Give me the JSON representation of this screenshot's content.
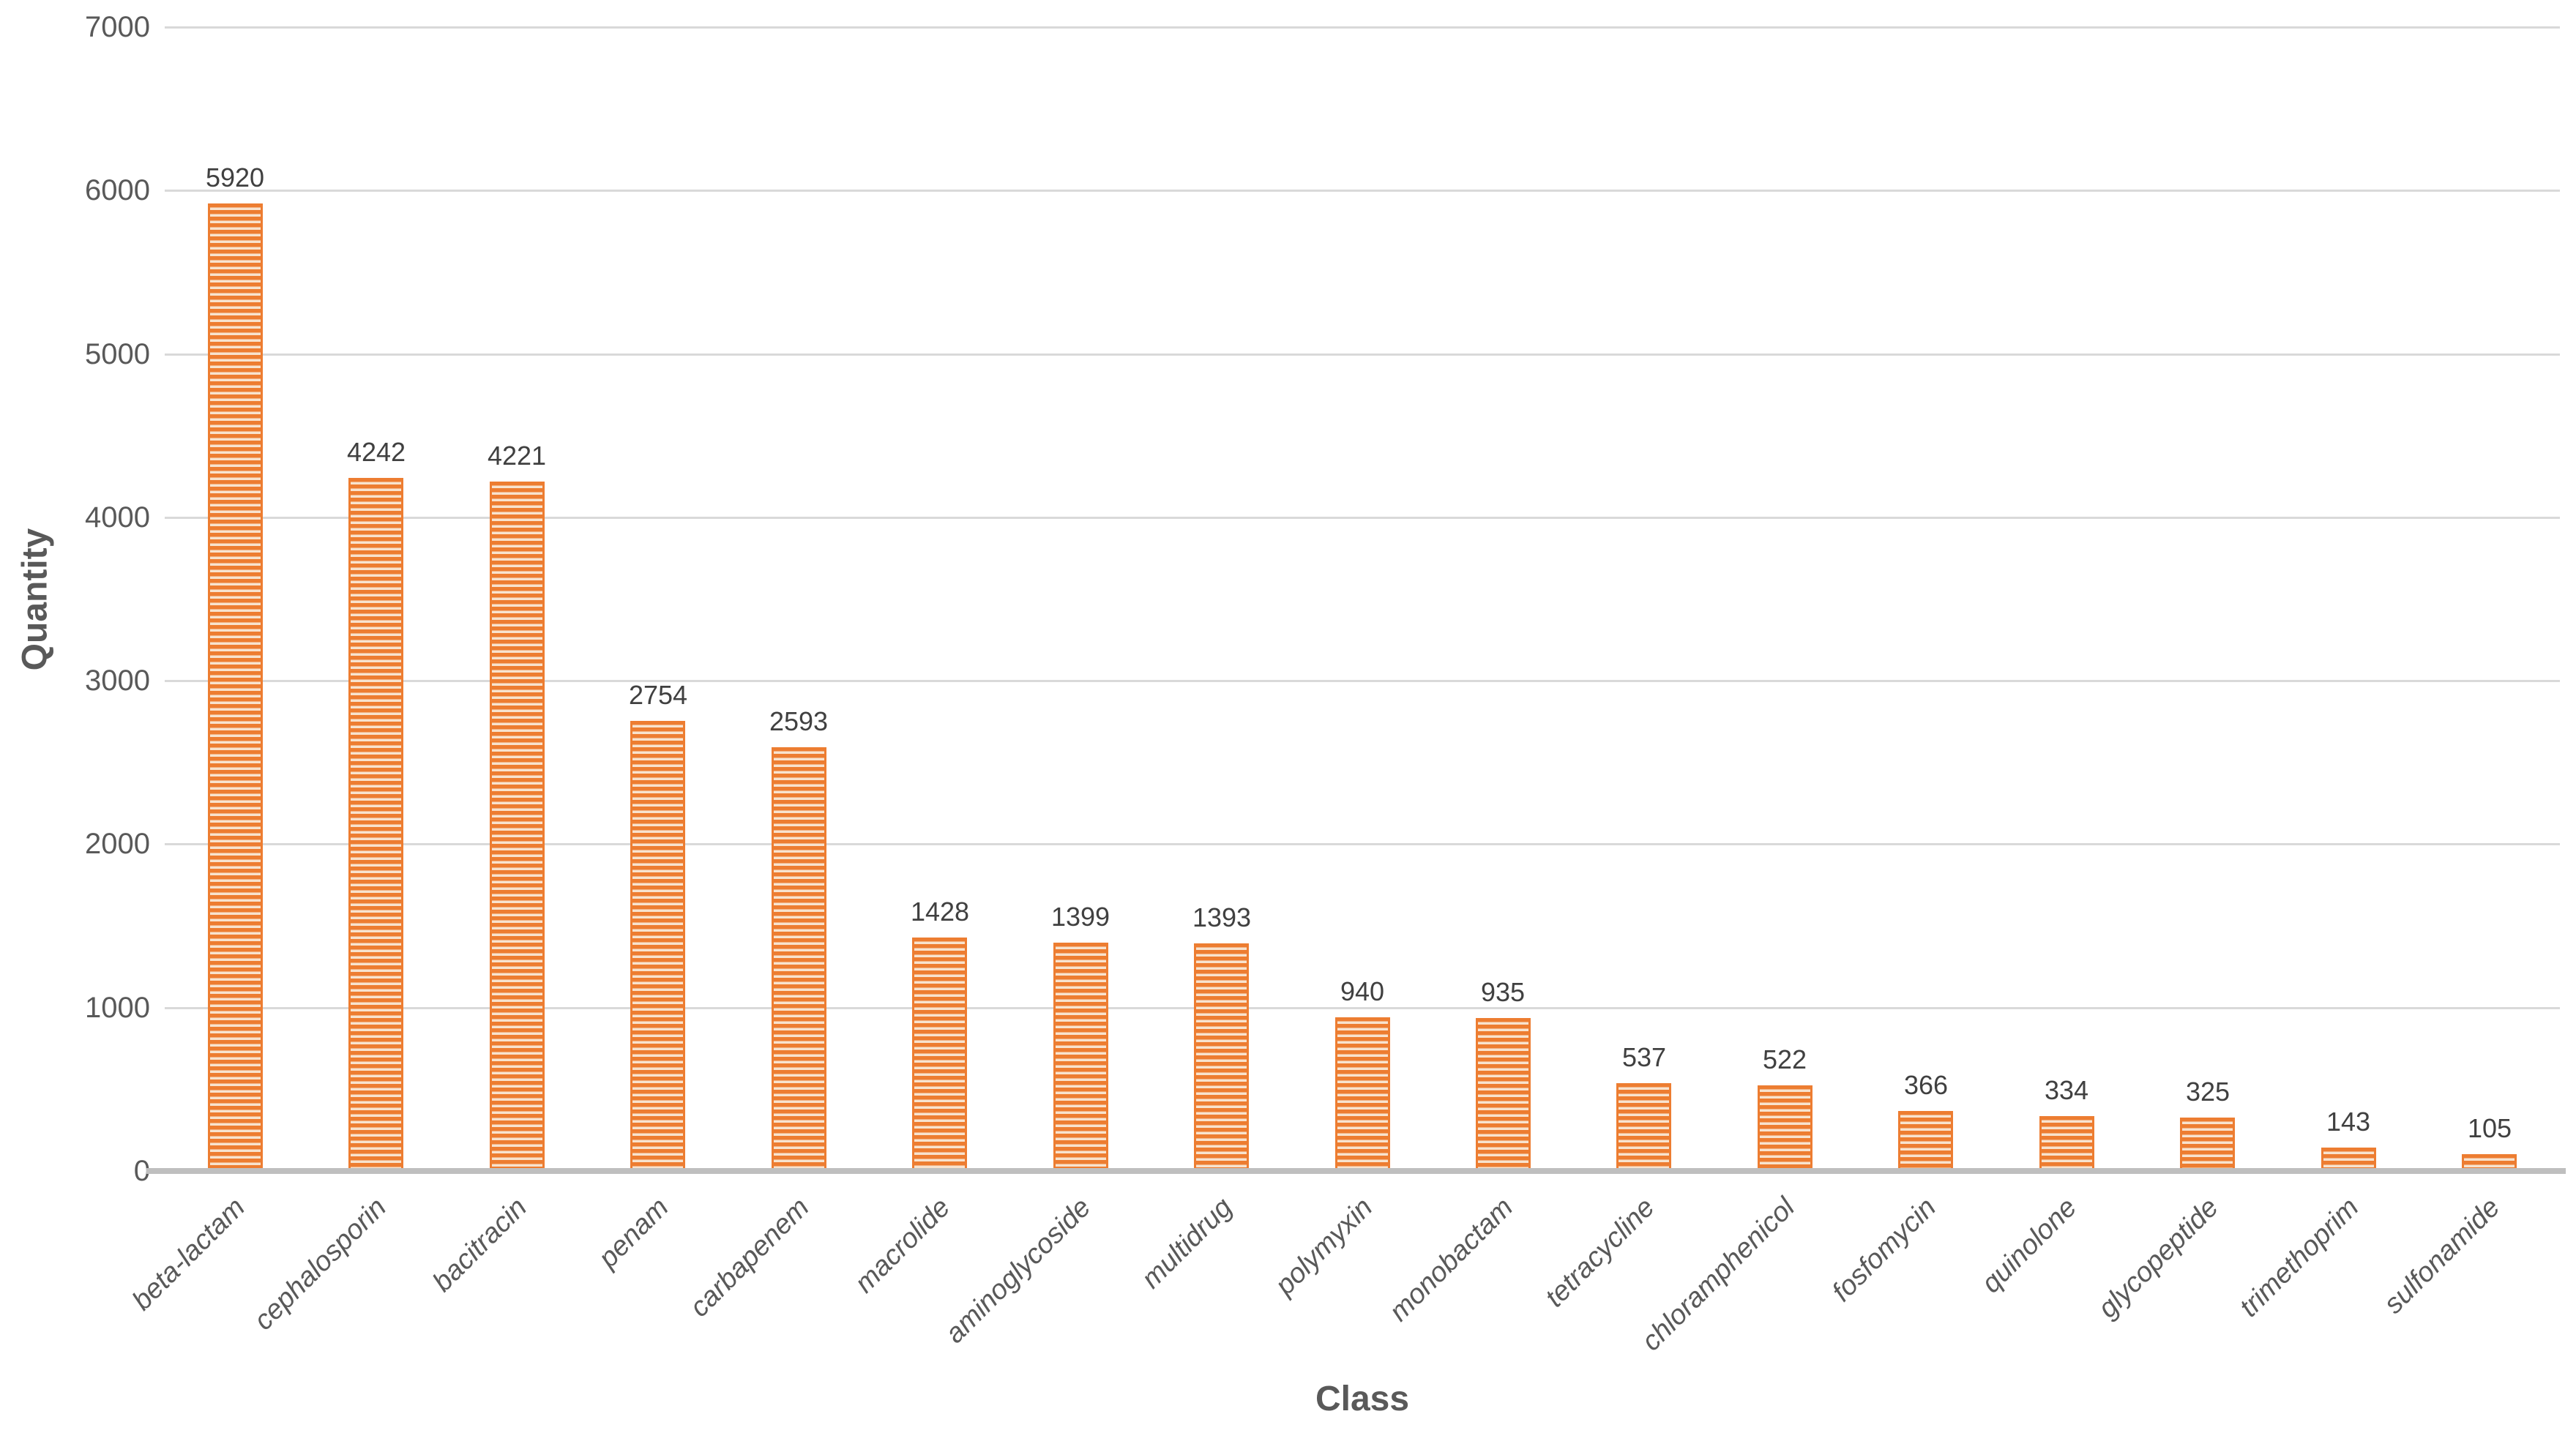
{
  "chart_data": {
    "type": "bar",
    "title": "",
    "xlabel": "Class",
    "ylabel": "Quantity",
    "categories": [
      "beta-lactam",
      "cephalosporin",
      "bacitracin",
      "penam",
      "carbapenem",
      "macrolide",
      "aminoglycoside",
      "multidrug",
      "polymyxin",
      "monobactam",
      "tetracycline",
      "chloramphenicol",
      "fosfomycin",
      "quinolone",
      "glycopeptide",
      "trimethoprim",
      "sulfonamide"
    ],
    "values": [
      5920,
      4242,
      4221,
      2754,
      2593,
      1428,
      1399,
      1393,
      940,
      935,
      537,
      522,
      366,
      334,
      325,
      143,
      105
    ],
    "data_labels": [
      "5920",
      "4242",
      "4221",
      "2754",
      "2593",
      "1428",
      "1399",
      "1393",
      "940",
      "935",
      "537",
      "522",
      "366",
      "334",
      "325",
      "143",
      "105"
    ],
    "ylim": [
      0,
      7000
    ],
    "yticks": [
      "0",
      "1000",
      "2000",
      "3000",
      "4000",
      "5000",
      "6000",
      "7000"
    ],
    "ytick_interval": 1000,
    "grid": "horizontal",
    "legend": "none",
    "bar_style": "horizontal-stripe-pattern",
    "category_label_rotation_deg": -45,
    "colors": {
      "bar_orange": "#ED7D31",
      "bar_stripe_light": "#F8E3CE",
      "gridline": "#D9D9D9",
      "axis_line": "#BFBFBF",
      "tick_text": "#595959",
      "data_label_text": "#404040",
      "axis_title_text": "#595959"
    }
  }
}
